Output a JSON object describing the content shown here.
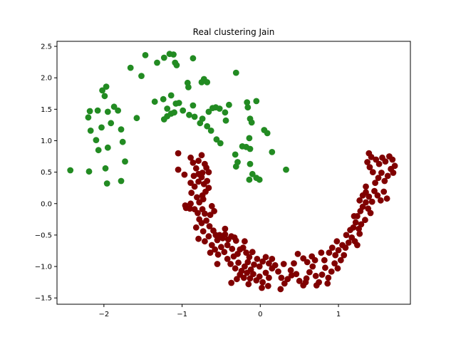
{
  "chart_data": {
    "type": "scatter",
    "title": "Real clustering Jain",
    "xlabel": "",
    "ylabel": "",
    "xlim": [
      -2.6,
      1.92
    ],
    "ylim": [
      -1.6,
      2.58
    ],
    "xticks": [
      -2,
      -1,
      0,
      1
    ],
    "yticks": [
      -1.5,
      -1.0,
      -0.5,
      0.0,
      0.5,
      1.0,
      1.5,
      2.0,
      2.5
    ],
    "xtick_labels": [
      "−2",
      "−1",
      "0",
      "1"
    ],
    "ytick_labels": [
      "−1.5",
      "−1.0",
      "−0.5",
      "0.0",
      "0.5",
      "1.0",
      "1.5",
      "2.0",
      "2.5"
    ],
    "grid": false,
    "series": [
      {
        "color": "#228b22",
        "points": [
          [
            -2.43,
            0.53
          ],
          [
            -2.19,
            0.51
          ],
          [
            -2.07,
            0.85
          ],
          [
            -1.98,
            0.56
          ],
          [
            -1.96,
            0.32
          ],
          [
            -1.95,
            0.89
          ],
          [
            -2.1,
            1.01
          ],
          [
            -2.03,
            1.21
          ],
          [
            -2.17,
            1.16
          ],
          [
            -2.2,
            1.37
          ],
          [
            -2.18,
            1.47
          ],
          [
            -2.08,
            1.48
          ],
          [
            -1.95,
            1.46
          ],
          [
            -1.91,
            1.28
          ],
          [
            -1.87,
            1.54
          ],
          [
            -1.82,
            1.48
          ],
          [
            -1.78,
            1.18
          ],
          [
            -1.76,
            0.98
          ],
          [
            -1.73,
            0.67
          ],
          [
            -1.78,
            0.36
          ],
          [
            -1.99,
            1.71
          ],
          [
            -2.02,
            1.8
          ],
          [
            -1.97,
            1.86
          ],
          [
            -1.66,
            2.16
          ],
          [
            -1.52,
            2.03
          ],
          [
            -1.47,
            2.36
          ],
          [
            -1.58,
            1.36
          ],
          [
            -1.32,
            2.24
          ],
          [
            -1.23,
            2.32
          ],
          [
            -1.16,
            2.38
          ],
          [
            -1.11,
            2.37
          ],
          [
            -1.09,
            2.24
          ],
          [
            -1.07,
            2.2
          ],
          [
            -0.86,
            2.31
          ],
          [
            -1.35,
            1.62
          ],
          [
            -1.24,
            1.66
          ],
          [
            -1.14,
            1.72
          ],
          [
            -1.19,
            1.51
          ],
          [
            -1.08,
            1.59
          ],
          [
            -1.1,
            1.45
          ],
          [
            -1.04,
            1.6
          ],
          [
            -0.99,
            1.48
          ],
          [
            -1.14,
            1.43
          ],
          [
            -1.19,
            1.39
          ],
          [
            -1.23,
            1.34
          ],
          [
            -0.92,
            1.85
          ],
          [
            -0.93,
            1.92
          ],
          [
            -0.86,
            1.56
          ],
          [
            -0.75,
            1.93
          ],
          [
            -0.72,
            1.98
          ],
          [
            -0.68,
            1.93
          ],
          [
            -0.91,
            1.41
          ],
          [
            -0.84,
            1.38
          ],
          [
            -0.77,
            1.28
          ],
          [
            -0.74,
            1.35
          ],
          [
            -0.66,
            1.46
          ],
          [
            -0.61,
            1.52
          ],
          [
            -0.57,
            1.53
          ],
          [
            -0.52,
            1.51
          ],
          [
            -0.45,
            1.45
          ],
          [
            -0.44,
            1.32
          ],
          [
            -0.4,
            1.57
          ],
          [
            -0.31,
            2.08
          ],
          [
            -0.68,
            1.23
          ],
          [
            -0.63,
            1.16
          ],
          [
            -0.56,
            1.02
          ],
          [
            -0.51,
            0.96
          ],
          [
            -0.23,
            0.91
          ],
          [
            -0.18,
            0.9
          ],
          [
            -0.16,
            1.53
          ],
          [
            -0.17,
            1.61
          ],
          [
            -0.05,
            1.63
          ],
          [
            -0.13,
            1.35
          ],
          [
            -0.11,
            1.29
          ],
          [
            -0.14,
            1.04
          ],
          [
            -0.32,
            0.78
          ],
          [
            -0.29,
            0.66
          ],
          [
            -0.31,
            0.59
          ],
          [
            -0.13,
            0.63
          ],
          [
            -0.13,
            0.87
          ],
          [
            -0.14,
            0.38
          ],
          [
            -0.1,
            0.47
          ],
          [
            -0.05,
            0.41
          ],
          [
            -0.01,
            0.38
          ],
          [
            0.05,
            1.17
          ],
          [
            0.09,
            1.12
          ],
          [
            0.15,
            0.82
          ],
          [
            0.33,
            0.54
          ]
        ]
      },
      {
        "color": "#800000",
        "points": [
          [
            -1.05,
            0.8
          ],
          [
            -1.05,
            0.54
          ],
          [
            -0.97,
            0.46
          ],
          [
            -0.89,
            0.73
          ],
          [
            -0.86,
            0.65
          ],
          [
            -0.82,
            0.56
          ],
          [
            -0.79,
            0.68
          ],
          [
            -0.75,
            0.77
          ],
          [
            -0.85,
            0.44
          ],
          [
            -0.79,
            0.47
          ],
          [
            -0.74,
            0.49
          ],
          [
            -0.71,
            0.63
          ],
          [
            -0.69,
            0.57
          ],
          [
            -0.66,
            0.5
          ],
          [
            -0.89,
            0.33
          ],
          [
            -0.84,
            0.27
          ],
          [
            -0.79,
            0.35
          ],
          [
            -0.75,
            0.42
          ],
          [
            -0.72,
            0.31
          ],
          [
            -0.68,
            0.36
          ],
          [
            -0.66,
            0.25
          ],
          [
            -0.7,
            0.19
          ],
          [
            -0.74,
            0.13
          ],
          [
            -0.88,
            0.17
          ],
          [
            -0.81,
            0.1
          ],
          [
            -0.78,
            0.02
          ],
          [
            -0.73,
            0.07
          ],
          [
            -0.96,
            -0.03
          ],
          [
            -0.95,
            -0.07
          ],
          [
            -0.89,
            0.0
          ],
          [
            -0.84,
            -0.09
          ],
          [
            -0.8,
            -0.15
          ],
          [
            -0.74,
            -0.09
          ],
          [
            -0.71,
            -0.16
          ],
          [
            -0.62,
            -0.04
          ],
          [
            -0.59,
            -0.12
          ],
          [
            -0.64,
            -0.18
          ],
          [
            -0.78,
            -0.25
          ],
          [
            -0.82,
            -0.38
          ],
          [
            -0.75,
            -0.31
          ],
          [
            -0.69,
            -0.27
          ],
          [
            -0.65,
            -0.36
          ],
          [
            -0.6,
            -0.43
          ],
          [
            -0.57,
            -0.5
          ],
          [
            -0.73,
            -0.44
          ],
          [
            -0.79,
            -0.56
          ],
          [
            -0.71,
            -0.6
          ],
          [
            -0.66,
            -0.52
          ],
          [
            -0.62,
            -0.66
          ],
          [
            -0.55,
            -0.58
          ],
          [
            -0.52,
            -0.5
          ],
          [
            -0.48,
            -0.55
          ],
          [
            -0.45,
            -0.49
          ],
          [
            -0.41,
            -0.57
          ],
          [
            -0.37,
            -0.52
          ],
          [
            -0.33,
            -0.54
          ],
          [
            -0.31,
            -0.59
          ],
          [
            -0.64,
            -0.78
          ],
          [
            -0.58,
            -0.73
          ],
          [
            -0.54,
            -0.81
          ],
          [
            -0.5,
            -0.69
          ],
          [
            -0.46,
            -0.77
          ],
          [
            -0.42,
            -0.66
          ],
          [
            -0.36,
            -0.72
          ],
          [
            -0.34,
            -0.84
          ],
          [
            -0.29,
            -0.8
          ],
          [
            -0.26,
            -0.73
          ],
          [
            -0.22,
            -0.7
          ],
          [
            -0.18,
            -0.78
          ],
          [
            -0.14,
            -0.85
          ],
          [
            -0.1,
            -0.77
          ],
          [
            -0.42,
            -0.88
          ],
          [
            -0.38,
            -0.96
          ],
          [
            -0.32,
            -1.03
          ],
          [
            -0.28,
            -0.94
          ],
          [
            -0.24,
            -1.07
          ],
          [
            -0.2,
            -1.0
          ],
          [
            -0.16,
            -0.93
          ],
          [
            -0.12,
            -1.05
          ],
          [
            -0.08,
            -0.97
          ],
          [
            -0.04,
            -0.88
          ],
          [
            -0.01,
            -1.0
          ],
          [
            0.03,
            -0.92
          ],
          [
            0.07,
            -0.85
          ],
          [
            0.11,
            -0.95
          ],
          [
            0.15,
            -0.88
          ],
          [
            -0.26,
            -1.13
          ],
          [
            -0.21,
            -1.18
          ],
          [
            -0.17,
            -1.1
          ],
          [
            -0.13,
            -1.19
          ],
          [
            -0.09,
            -1.12
          ],
          [
            -0.05,
            -1.22
          ],
          [
            -0.01,
            -1.16
          ],
          [
            0.03,
            -1.25
          ],
          [
            0.07,
            -1.1
          ],
          [
            0.11,
            -1.18
          ],
          [
            0.15,
            -1.03
          ],
          [
            0.19,
            -0.98
          ],
          [
            0.23,
            -1.08
          ],
          [
            0.27,
            -1.18
          ],
          [
            0.31,
            -1.27
          ],
          [
            0.35,
            -1.2
          ],
          [
            0.39,
            -1.06
          ],
          [
            0.43,
            -0.95
          ],
          [
            0.46,
            -1.12
          ],
          [
            0.5,
            -1.23
          ],
          [
            0.55,
            -1.3
          ],
          [
            0.59,
            -1.19
          ],
          [
            0.63,
            -1.09
          ],
          [
            0.67,
            -1.0
          ],
          [
            0.71,
            -1.15
          ],
          [
            0.75,
            -1.25
          ],
          [
            0.79,
            -1.13
          ],
          [
            0.83,
            -1.02
          ],
          [
            0.87,
            -1.18
          ],
          [
            0.91,
            -1.08
          ],
          [
            0.95,
            -0.95
          ],
          [
            0.99,
            -1.03
          ],
          [
            1.03,
            -0.9
          ],
          [
            1.07,
            -0.82
          ],
          [
            0.7,
            -0.9
          ],
          [
            0.66,
            -0.84
          ],
          [
            0.6,
            -0.93
          ],
          [
            0.55,
            -0.87
          ],
          [
            0.82,
            -0.9
          ],
          [
            0.88,
            -0.78
          ],
          [
            0.92,
            -0.7
          ],
          [
            0.96,
            -0.82
          ],
          [
            1.0,
            -0.74
          ],
          [
            1.05,
            -0.66
          ],
          [
            1.09,
            -0.7
          ],
          [
            1.13,
            -0.62
          ],
          [
            1.17,
            -0.54
          ],
          [
            1.21,
            -0.6
          ],
          [
            1.24,
            -0.66
          ],
          [
            1.1,
            -0.5
          ],
          [
            1.15,
            -0.42
          ],
          [
            1.19,
            -0.38
          ],
          [
            1.22,
            -0.3
          ],
          [
            1.26,
            -0.4
          ],
          [
            1.29,
            -0.33
          ],
          [
            1.34,
            -0.26
          ],
          [
            1.24,
            -0.2
          ],
          [
            1.28,
            -0.12
          ],
          [
            1.31,
            -0.05
          ],
          [
            1.35,
            0.02
          ],
          [
            1.38,
            -0.08
          ],
          [
            1.41,
            -0.15
          ],
          [
            1.27,
            0.05
          ],
          [
            1.31,
            0.13
          ],
          [
            1.35,
            0.18
          ],
          [
            1.39,
            0.11
          ],
          [
            1.43,
            0.03
          ],
          [
            1.46,
            0.2
          ],
          [
            1.5,
            0.13
          ],
          [
            1.54,
            0.05
          ],
          [
            1.58,
            0.19
          ],
          [
            1.62,
            0.08
          ],
          [
            1.47,
            0.33
          ],
          [
            1.51,
            0.41
          ],
          [
            1.55,
            0.49
          ],
          [
            1.59,
            0.36
          ],
          [
            1.63,
            0.44
          ],
          [
            1.44,
            0.5
          ],
          [
            1.4,
            0.58
          ],
          [
            1.37,
            0.66
          ],
          [
            1.42,
            0.74
          ],
          [
            1.48,
            0.7
          ],
          [
            1.52,
            0.63
          ],
          [
            1.56,
            0.73
          ],
          [
            1.6,
            0.67
          ],
          [
            1.65,
            0.75
          ],
          [
            1.69,
            0.7
          ],
          [
            1.72,
            0.6
          ],
          [
            1.67,
            0.55
          ],
          [
            1.7,
            0.49
          ],
          [
            1.39,
            0.8
          ],
          [
            1.35,
            0.27
          ],
          [
            1.27,
            -0.48
          ],
          [
            -0.37,
            -1.26
          ],
          [
            -0.3,
            -1.2
          ],
          [
            -0.15,
            -1.28
          ],
          [
            0.02,
            -1.34
          ],
          [
            0.1,
            -1.31
          ],
          [
            0.26,
            -1.36
          ],
          [
            0.58,
            -1.25
          ],
          [
            0.72,
            -1.3
          ],
          [
            0.4,
            -1.14
          ],
          [
            0.86,
            -1.27
          ],
          [
            0.3,
            -0.96
          ],
          [
            0.78,
            -0.78
          ],
          [
            0.48,
            -0.8
          ],
          [
            -0.45,
            -0.4
          ],
          [
            -0.9,
            -0.08
          ],
          [
            1.2,
            -0.2
          ],
          [
            0.98,
            -0.6
          ],
          [
            -0.2,
            -0.6
          ],
          [
            -0.55,
            -0.96
          ]
        ]
      }
    ]
  }
}
